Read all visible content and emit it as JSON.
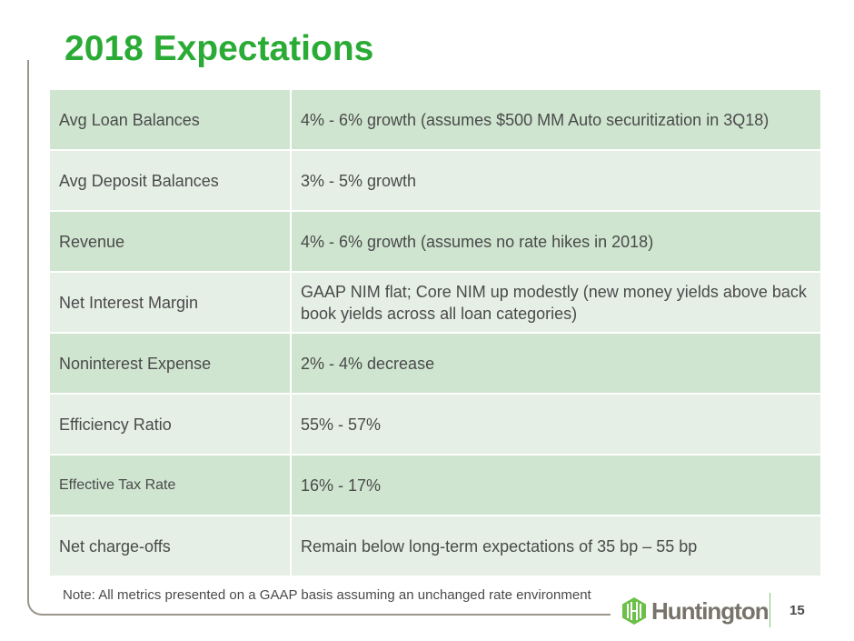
{
  "title": "2018 Expectations",
  "rows": [
    {
      "label": "Avg Loan Balances",
      "value": "4% - 6% growth (assumes $500 MM Auto securitization in 3Q18)"
    },
    {
      "label": "Avg Deposit Balances",
      "value": "3% - 5% growth"
    },
    {
      "label": "Revenue",
      "value": "4% - 6% growth (assumes no rate hikes in 2018)"
    },
    {
      "label": "Net Interest Margin",
      "value": "GAAP NIM flat; Core NIM up modestly (new money yields above back book yields across all loan categories)"
    },
    {
      "label": "Noninterest Expense",
      "value": "2% - 4% decrease"
    },
    {
      "label": "Efficiency Ratio",
      "value": "55% - 57%"
    },
    {
      "label": "Effective Tax Rate",
      "value": "16% - 17%"
    },
    {
      "label": "Net charge-offs",
      "value": "Remain below long-term expectations of 35 bp – 55 bp"
    }
  ],
  "note": "Note: All metrics presented on a GAAP basis assuming an unchanged rate environment",
  "logo": "Huntington",
  "page_number": "15",
  "colors": {
    "title": "#2aab35",
    "row_dark": "#cfe5d0",
    "row_light": "#e5efe6"
  }
}
